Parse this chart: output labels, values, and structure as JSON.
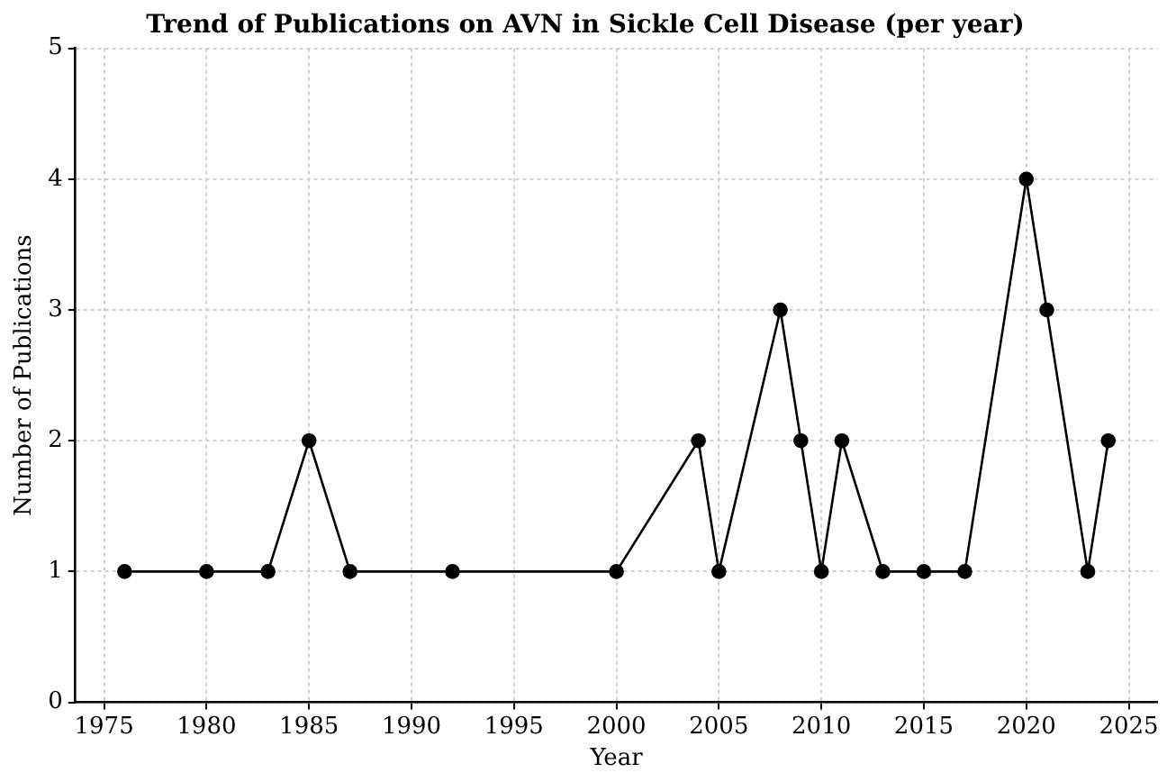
{
  "chart_data": {
    "type": "line",
    "title": "Trend of Publications on AVN in Sickle Cell Disease (per year)",
    "xlabel": "Year",
    "ylabel": "Number of Publications",
    "x": [
      1976,
      1980,
      1983,
      1985,
      1987,
      1992,
      2000,
      2004,
      2005,
      2008,
      2009,
      2010,
      2011,
      2013,
      2015,
      2017,
      2020,
      2021,
      2023,
      2024
    ],
    "series": [
      {
        "color": "#000000",
        "values": [
          1,
          1,
          1,
          2,
          1,
          1,
          1,
          2,
          1,
          3,
          2,
          1,
          2,
          1,
          1,
          1,
          4,
          3,
          1,
          2
        ]
      }
    ],
    "xlim": [
      1973.6,
      2026.4
    ],
    "xticks": [
      1975,
      1980,
      1985,
      1990,
      1995,
      2000,
      2005,
      2010,
      2015,
      2020,
      2025
    ],
    "ylim": [
      0,
      5
    ],
    "yticks": [
      0,
      1,
      2,
      3,
      4,
      5
    ],
    "grid": true,
    "legend": false,
    "marker": "circle",
    "line_style": "solid"
  }
}
